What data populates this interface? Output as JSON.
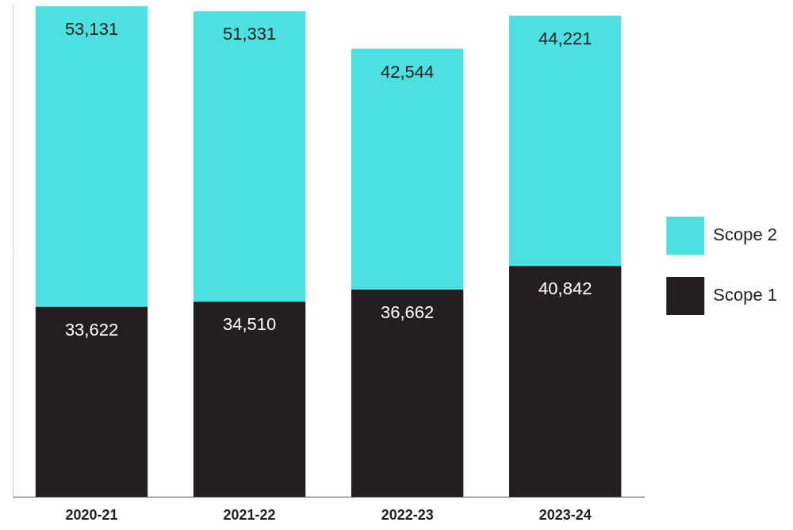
{
  "chart_data": {
    "type": "bar",
    "categories": [
      "2020-21",
      "2021-22",
      "2022-23",
      "2023-24"
    ],
    "series": [
      {
        "name": "Scope 1",
        "color": "#231f20",
        "values": [
          33622,
          34510,
          36662,
          40842
        ],
        "value_labels": [
          "33,622",
          "34,510",
          "36,662",
          "40,842"
        ]
      },
      {
        "name": "Scope 2",
        "color": "#4de0e0",
        "values": [
          53131,
          51331,
          42544,
          44221
        ],
        "value_labels": [
          "53,131",
          "51,331",
          "42,544",
          "44,221"
        ]
      }
    ],
    "ylim": [
      0,
      87000
    ],
    "yticks": [],
    "stacked": true,
    "data_labels": true,
    "grid": false,
    "legend": "right",
    "tick_labels": "x"
  }
}
